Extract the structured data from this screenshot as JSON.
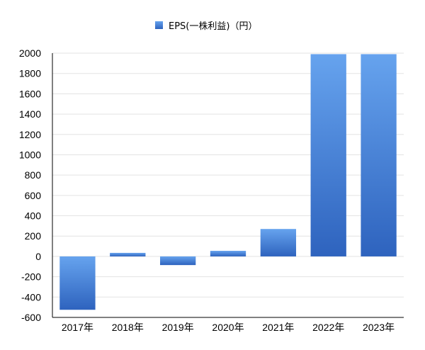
{
  "chart_data": {
    "type": "bar",
    "categories": [
      "2017年",
      "2018年",
      "2019年",
      "2020年",
      "2021年",
      "2022年",
      "2023年"
    ],
    "series": [
      {
        "name": "EPS(一株利益)（円）",
        "values": [
          -525,
          35,
          -85,
          55,
          270,
          1990,
          1990
        ],
        "color_top": "#66A3EE",
        "color_bottom": "#2E63BE"
      }
    ],
    "ylim": [
      -600,
      2000
    ],
    "yticks": [
      -600,
      -400,
      -200,
      0,
      200,
      400,
      600,
      800,
      1000,
      1200,
      1400,
      1600,
      1800,
      2000
    ],
    "grid": true,
    "legend_position": "top-center",
    "xlabel": "",
    "ylabel": ""
  }
}
